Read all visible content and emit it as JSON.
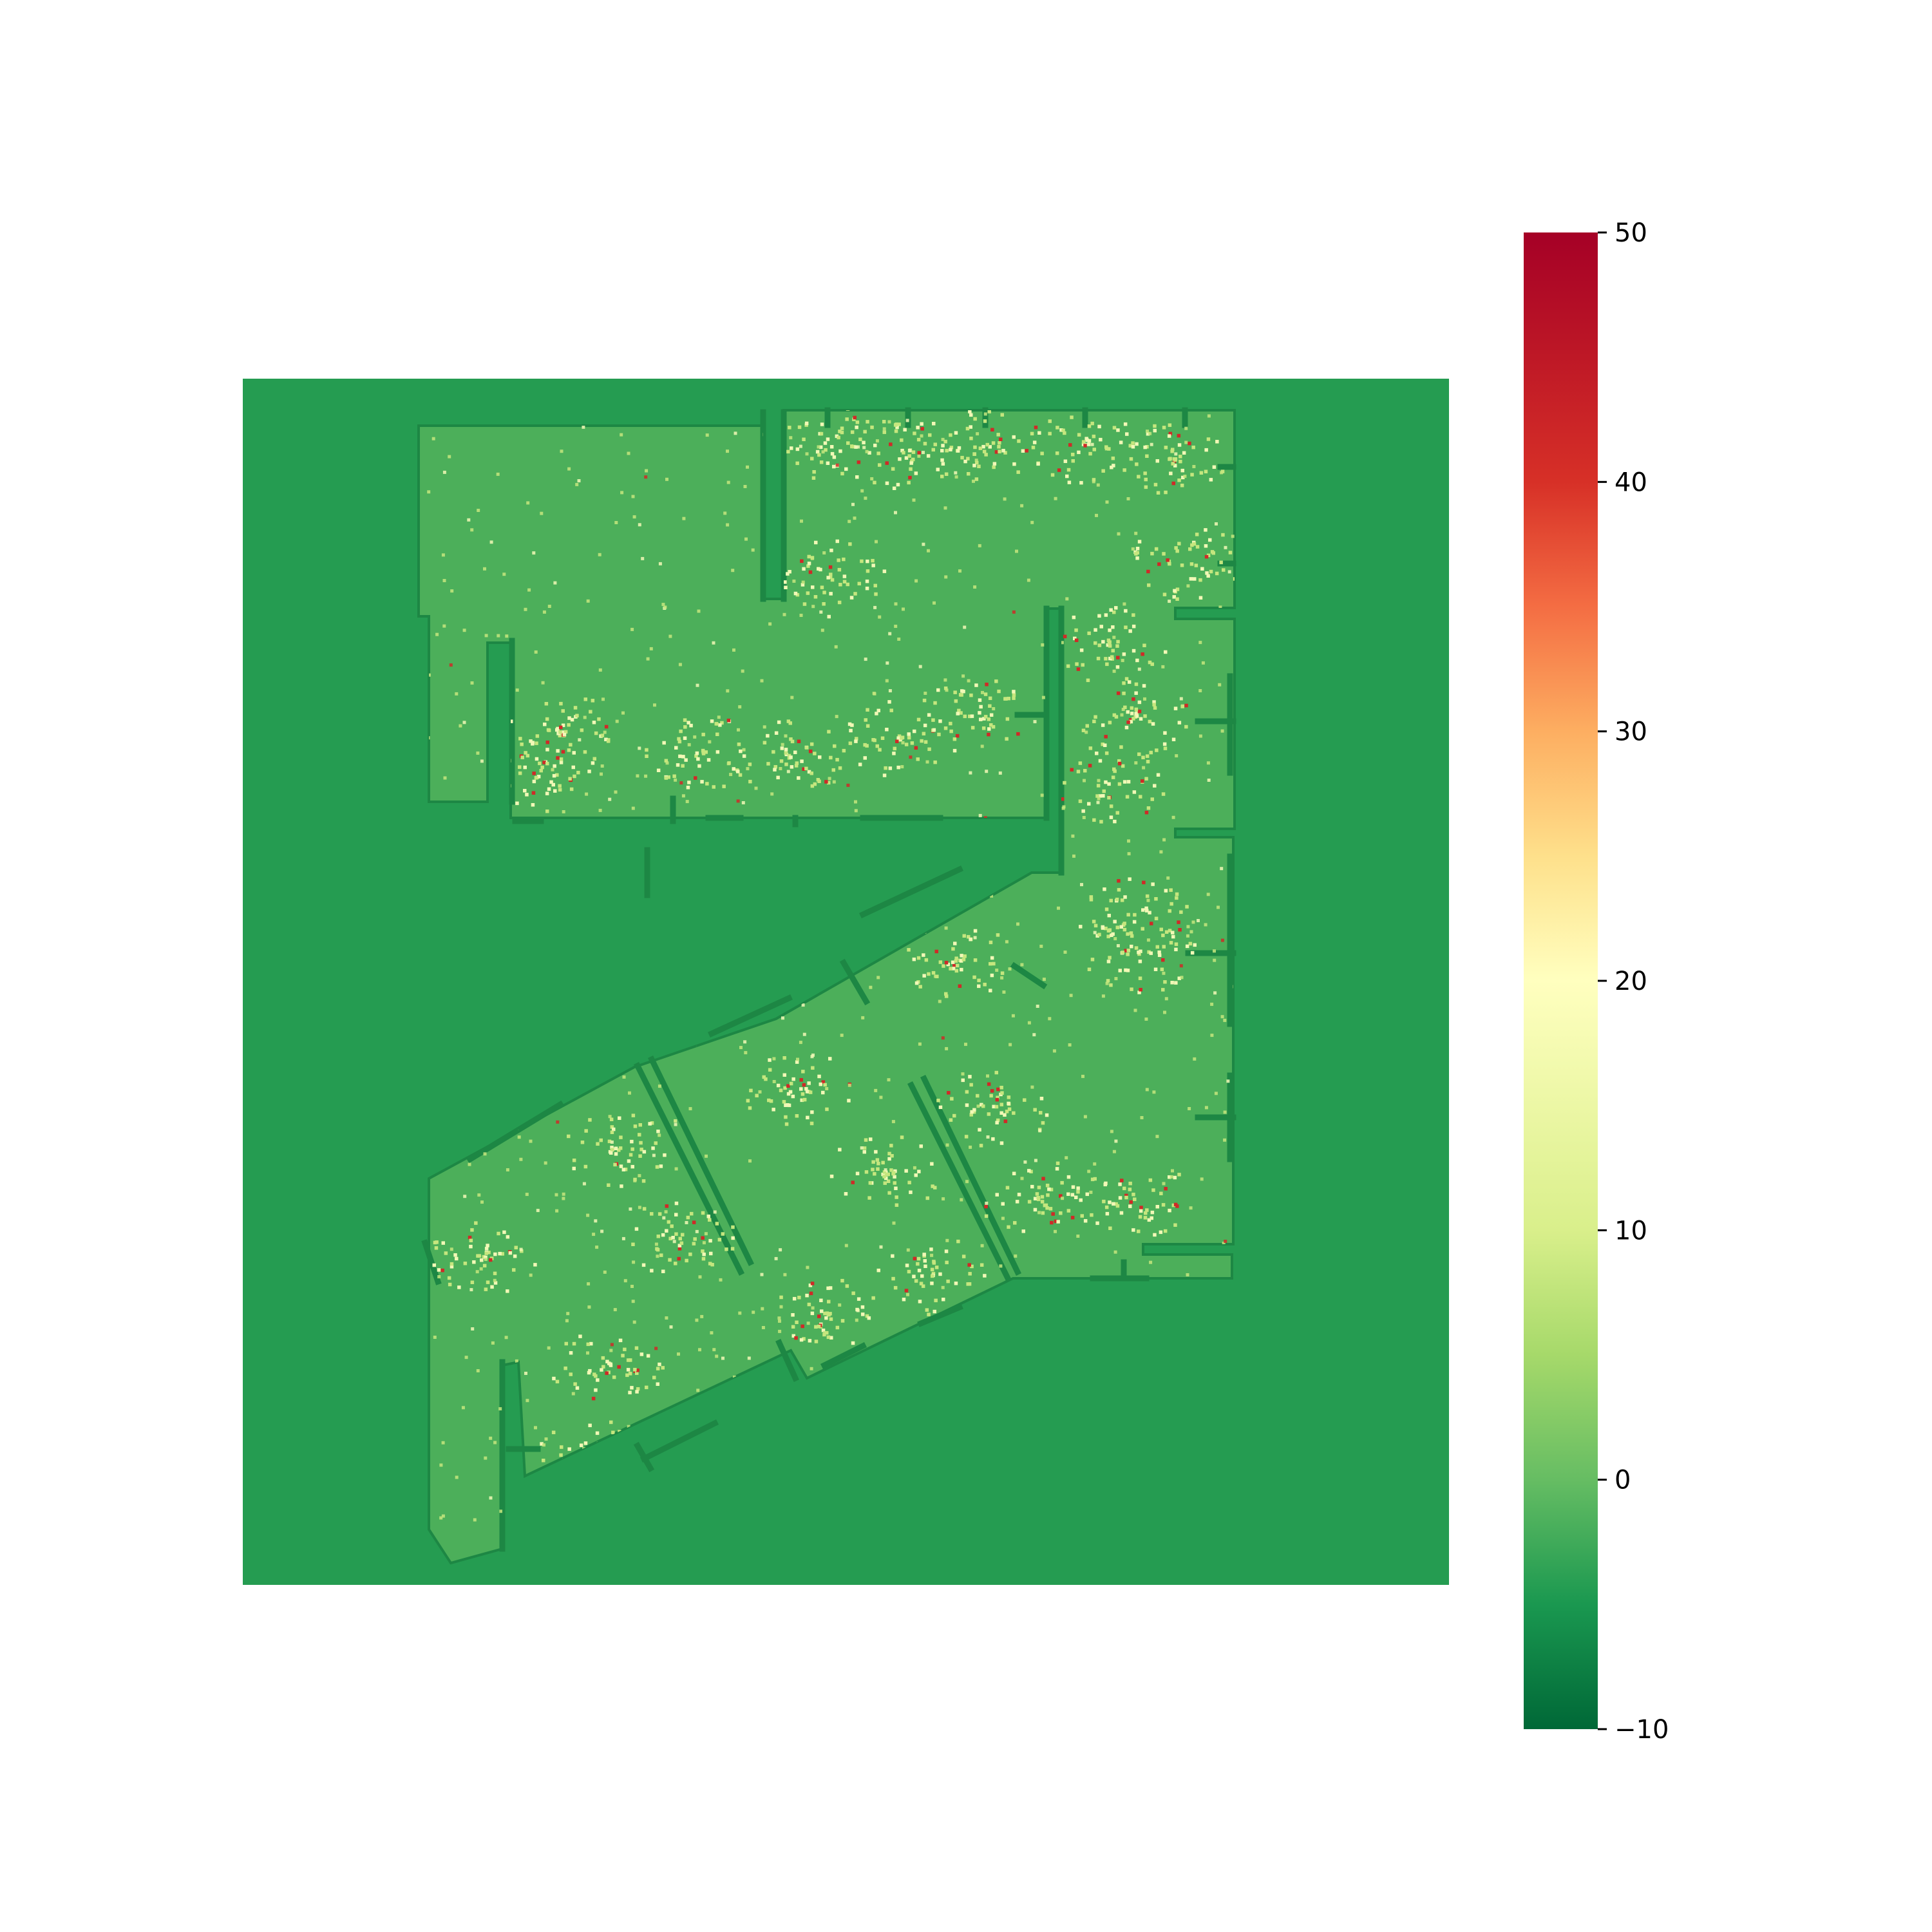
{
  "chart_data": {
    "type": "heatmap",
    "title": "",
    "xlabel": "",
    "ylabel": "",
    "colormap": "RdYlGn_r",
    "colorbar": {
      "vmin": -10,
      "vmax": 50,
      "ticks": [
        -10,
        0,
        10,
        20,
        30,
        40,
        50
      ],
      "tick_labels": [
        "−10",
        "0",
        "10",
        "20",
        "30",
        "40",
        "50"
      ],
      "stops": [
        {
          "value": -10,
          "color": "#006837"
        },
        {
          "value": -5,
          "color": "#1a9850"
        },
        {
          "value": 0,
          "color": "#66bd63"
        },
        {
          "value": 5,
          "color": "#a6d96a"
        },
        {
          "value": 10,
          "color": "#d9ef8b"
        },
        {
          "value": 20,
          "color": "#ffffbf"
        },
        {
          "value": 25,
          "color": "#fee08b"
        },
        {
          "value": 30,
          "color": "#fdae61"
        },
        {
          "value": 35,
          "color": "#f46d43"
        },
        {
          "value": 40,
          "color": "#d73027"
        },
        {
          "value": 50,
          "color": "#a50026"
        }
      ]
    },
    "regions": [
      {
        "name": "background",
        "value": -5.5,
        "color": "#259c51"
      },
      {
        "name": "floor",
        "value": -1,
        "color": "#4caf5a"
      },
      {
        "name": "walls",
        "value": -7,
        "color": "#1d8744"
      }
    ],
    "hotspots": {
      "low_color": "#c5e67e",
      "mid_color": "#f2f8b6",
      "high_color": "#cf2a27"
    }
  }
}
